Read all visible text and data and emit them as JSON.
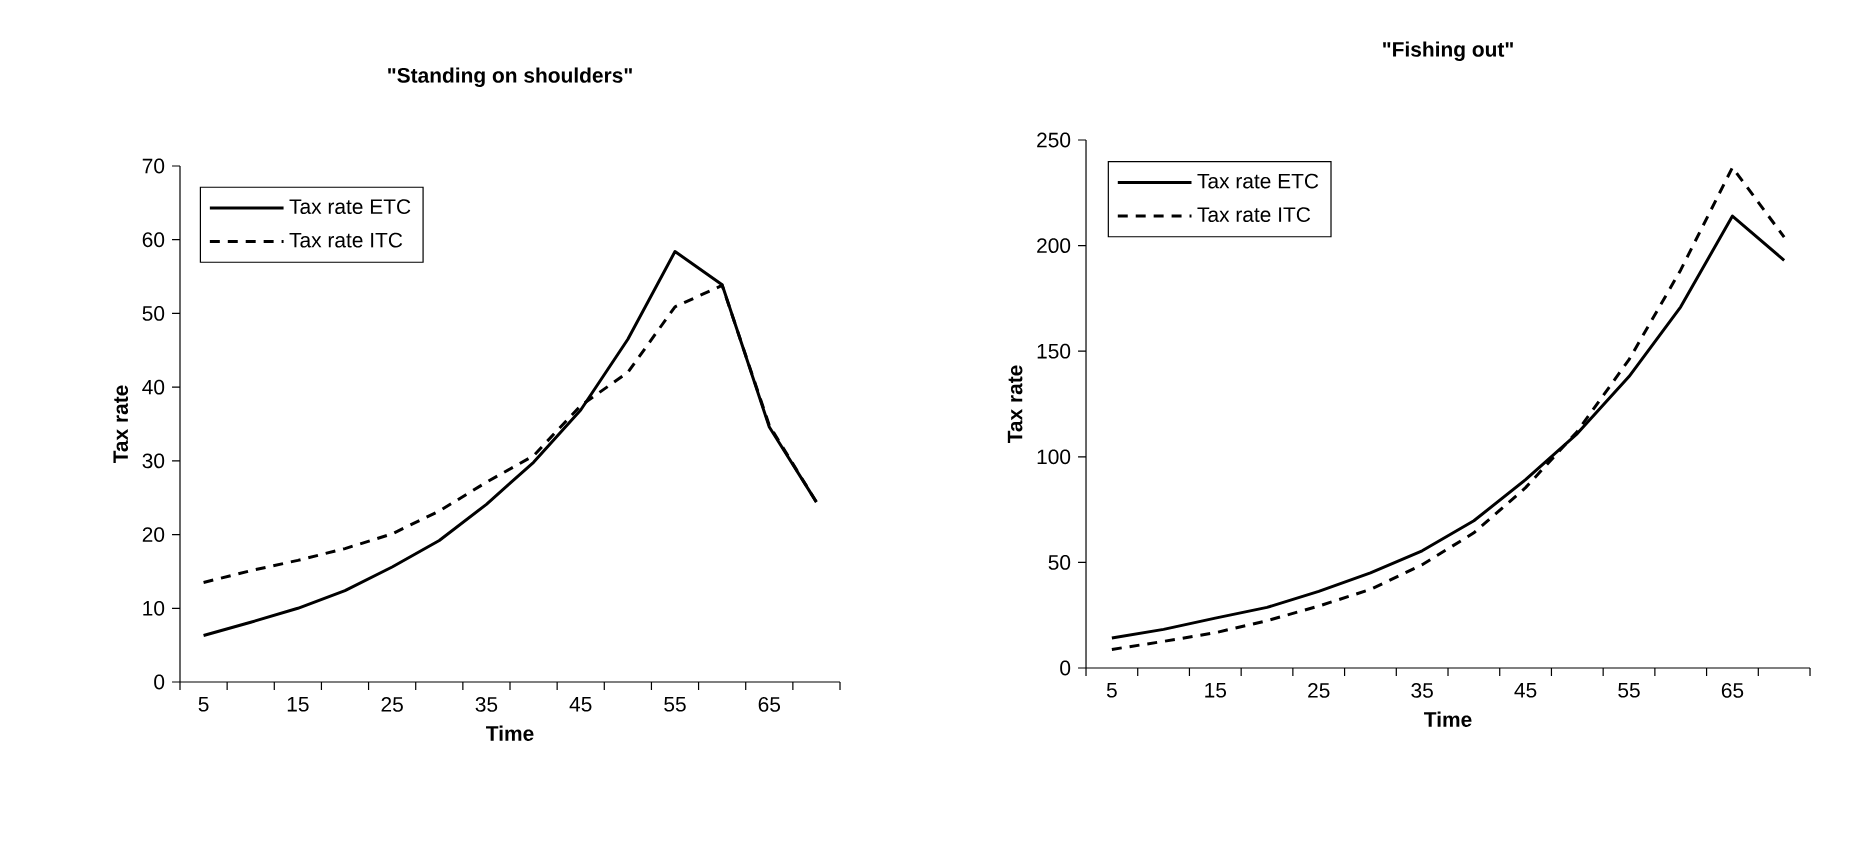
{
  "chart_data": [
    {
      "type": "line",
      "title": "\"Standing on shoulders\"",
      "xlabel": "Time",
      "ylabel": "Tax rate",
      "categories": [
        "5",
        null,
        "15",
        null,
        "25",
        null,
        "35",
        null,
        "45",
        null,
        "55",
        null,
        "65",
        null
      ],
      "series": [
        {
          "name": "Tax rate ETC",
          "color": "#000000",
          "line_style": "solid",
          "values": [
            6.3,
            8.1,
            10,
            12.4,
            15.6,
            19.2,
            24.1,
            29.8,
            36.9,
            46.5,
            58.4,
            53.9,
            34.6,
            24.4
          ]
        },
        {
          "name": "Tax rate ITC",
          "color": "#000000",
          "line_style": "dashed",
          "values": [
            13.5,
            15.1,
            16.5,
            18.1,
            20.1,
            23.2,
            27.1,
            30.7,
            37.5,
            42,
            50.9,
            53.8,
            34.8,
            24.4
          ]
        }
      ],
      "ylim": [
        0,
        70
      ],
      "yticks": [
        0,
        10,
        20,
        30,
        40,
        50,
        60,
        70
      ],
      "legend": "top left",
      "grid": false,
      "marker": "none"
    },
    {
      "type": "line",
      "title": "\"Fishing out\"",
      "xlabel": "Time",
      "ylabel": "Tax rate",
      "categories": [
        "5",
        null,
        "15",
        null,
        "25",
        null,
        "35",
        null,
        "45",
        null,
        "55",
        null,
        "65",
        null
      ],
      "series": [
        {
          "name": "Tax rate ETC",
          "color": "#000000",
          "line_style": "solid",
          "values": [
            14.2,
            18.3,
            23.6,
            28.7,
            36.3,
            45,
            55.5,
            69.7,
            89.2,
            111,
            138,
            171,
            214,
            193
          ]
        },
        {
          "name": "Tax rate ITC",
          "color": "#000000",
          "line_style": "dashed",
          "values": [
            8.8,
            12.6,
            16.7,
            22.4,
            29.3,
            37.2,
            48.9,
            64,
            85.4,
            112,
            146,
            188.5,
            237,
            204
          ]
        }
      ],
      "ylim": [
        0,
        250
      ],
      "yticks": [
        0,
        50,
        100,
        150,
        200,
        250
      ],
      "legend": "top left",
      "grid": false,
      "marker": "none"
    }
  ]
}
